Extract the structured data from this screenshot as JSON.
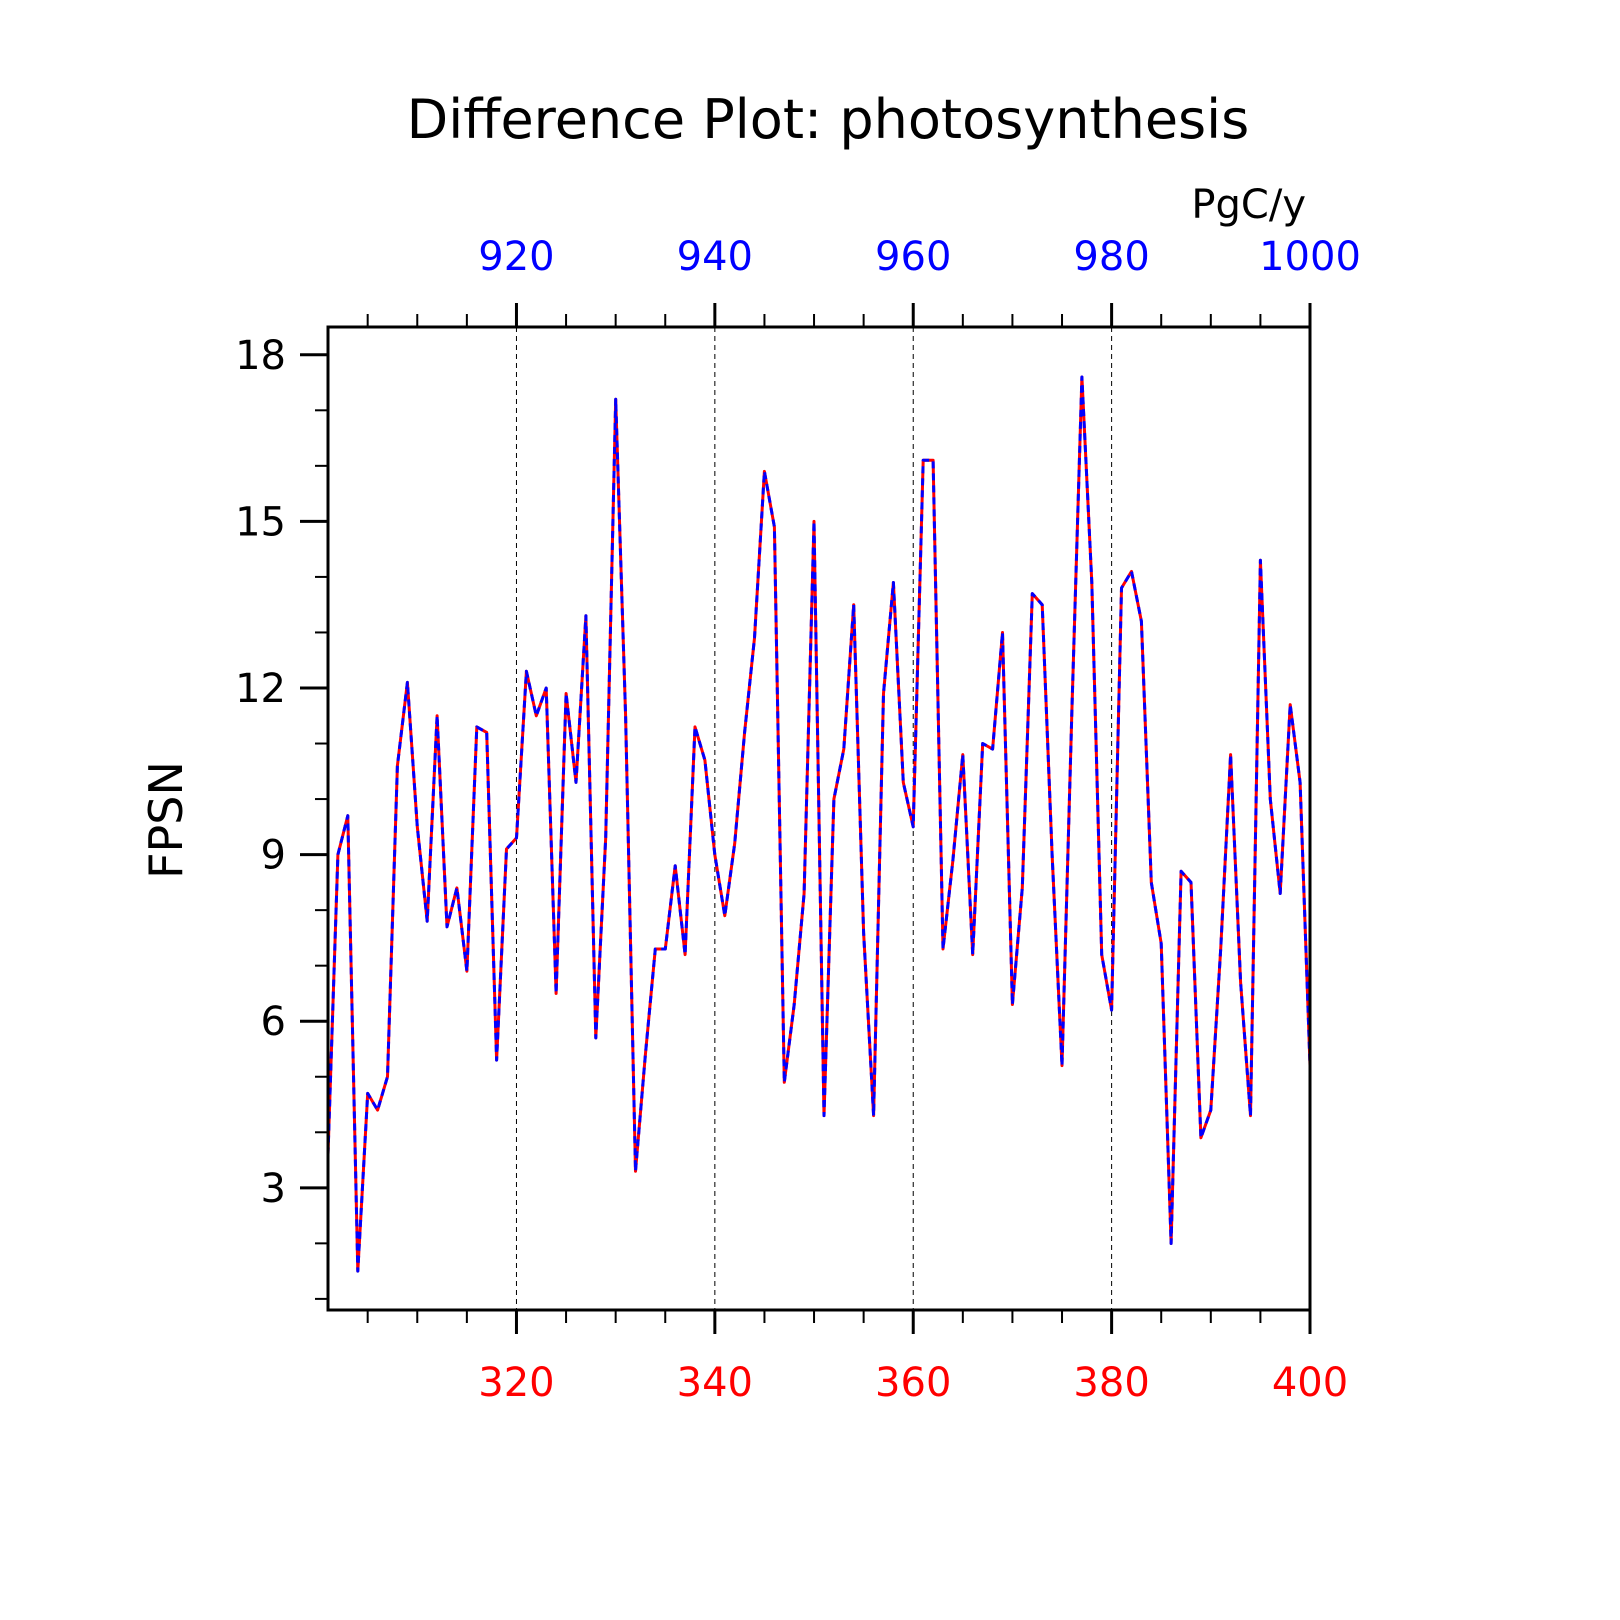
{
  "chart_data": {
    "type": "line",
    "title": "Difference Plot: photosynthesis",
    "units": "PgC/y",
    "ylabel": "FPSN",
    "xlim_bottom": [
      301,
      400
    ],
    "xlim_top": [
      901,
      1000
    ],
    "ylim": [
      0.8,
      18.5
    ],
    "yticks": [
      "3",
      "6",
      "9",
      "12",
      "15",
      "18"
    ],
    "xticks_bottom": [
      "320",
      "340",
      "360",
      "380",
      "400"
    ],
    "xticks_top": [
      "920",
      "940",
      "960",
      "980",
      "1000"
    ],
    "grid": "vertical dashed at major top ticks",
    "colors": {
      "bottom_axis": "#ff0000",
      "top_axis": "#0000ff",
      "frame": "#000000"
    },
    "x": [
      301,
      302,
      303,
      304,
      305,
      306,
      307,
      308,
      309,
      310,
      311,
      312,
      313,
      314,
      315,
      316,
      317,
      318,
      319,
      320,
      321,
      322,
      323,
      324,
      325,
      326,
      327,
      328,
      329,
      330,
      331,
      332,
      333,
      334,
      335,
      336,
      337,
      338,
      339,
      340,
      341,
      342,
      343,
      344,
      345,
      346,
      347,
      348,
      349,
      350,
      351,
      352,
      353,
      354,
      355,
      356,
      357,
      358,
      359,
      360,
      361,
      362,
      363,
      364,
      365,
      366,
      367,
      368,
      369,
      370,
      371,
      372,
      373,
      374,
      375,
      376,
      377,
      378,
      379,
      380,
      381,
      382,
      383,
      384,
      385,
      386,
      387,
      388,
      389,
      390,
      391,
      392,
      393,
      394,
      395,
      396,
      397,
      398,
      399,
      400
    ],
    "series": [
      {
        "color": "#ff0000",
        "style": "solid",
        "values": [
          3.6,
          9.0,
          9.7,
          1.5,
          4.7,
          4.4,
          5.0,
          10.6,
          12.1,
          9.5,
          7.8,
          11.5,
          7.7,
          8.4,
          6.9,
          11.3,
          11.2,
          5.3,
          9.1,
          9.3,
          12.3,
          11.5,
          12.0,
          6.5,
          11.9,
          10.3,
          13.3,
          5.7,
          9.3,
          17.2,
          11.5,
          3.3,
          5.4,
          7.3,
          7.3,
          8.8,
          7.2,
          11.3,
          10.7,
          9.0,
          7.9,
          9.2,
          11.2,
          12.9,
          15.9,
          14.9,
          4.9,
          6.3,
          8.3,
          15.0,
          4.3,
          10.0,
          10.9,
          13.5,
          7.6,
          4.3,
          11.9,
          13.9,
          10.3,
          9.5,
          16.1,
          16.1,
          7.3,
          8.9,
          10.8,
          7.2,
          11.0,
          10.9,
          13.0,
          6.3,
          8.4,
          13.7,
          13.5,
          9.0,
          5.2,
          11.6,
          17.6,
          13.9,
          7.2,
          6.2,
          13.8,
          14.1,
          13.2,
          8.5,
          7.4,
          2.0,
          8.7,
          8.5,
          3.9,
          4.4,
          7.3,
          10.8,
          6.7,
          4.3,
          14.3,
          10.0,
          8.3,
          11.7,
          10.3,
          5.2
        ]
      },
      {
        "color": "#0000ff",
        "style": "dashed",
        "values": [
          3.6,
          9.0,
          9.7,
          1.5,
          4.7,
          4.4,
          5.0,
          10.6,
          12.1,
          9.5,
          7.8,
          11.5,
          7.7,
          8.4,
          6.9,
          11.3,
          11.2,
          5.3,
          9.1,
          9.3,
          12.3,
          11.5,
          12.0,
          6.5,
          11.9,
          10.3,
          13.3,
          5.7,
          9.3,
          17.2,
          11.5,
          3.3,
          5.4,
          7.3,
          7.3,
          8.8,
          7.2,
          11.3,
          10.7,
          9.0,
          7.9,
          9.2,
          11.2,
          12.9,
          15.9,
          14.9,
          4.9,
          6.3,
          8.3,
          15.0,
          4.3,
          10.0,
          10.9,
          13.5,
          7.6,
          4.3,
          11.9,
          13.9,
          10.3,
          9.5,
          16.1,
          16.1,
          7.3,
          8.9,
          10.8,
          7.2,
          11.0,
          10.9,
          13.0,
          6.3,
          8.4,
          13.7,
          13.5,
          9.0,
          5.2,
          11.6,
          17.6,
          13.9,
          7.2,
          6.2,
          13.8,
          14.1,
          13.2,
          8.5,
          7.4,
          2.0,
          8.7,
          8.5,
          3.9,
          4.4,
          7.3,
          10.8,
          6.7,
          4.3,
          14.3,
          10.0,
          8.3,
          11.7,
          10.3,
          5.2
        ]
      }
    ]
  }
}
